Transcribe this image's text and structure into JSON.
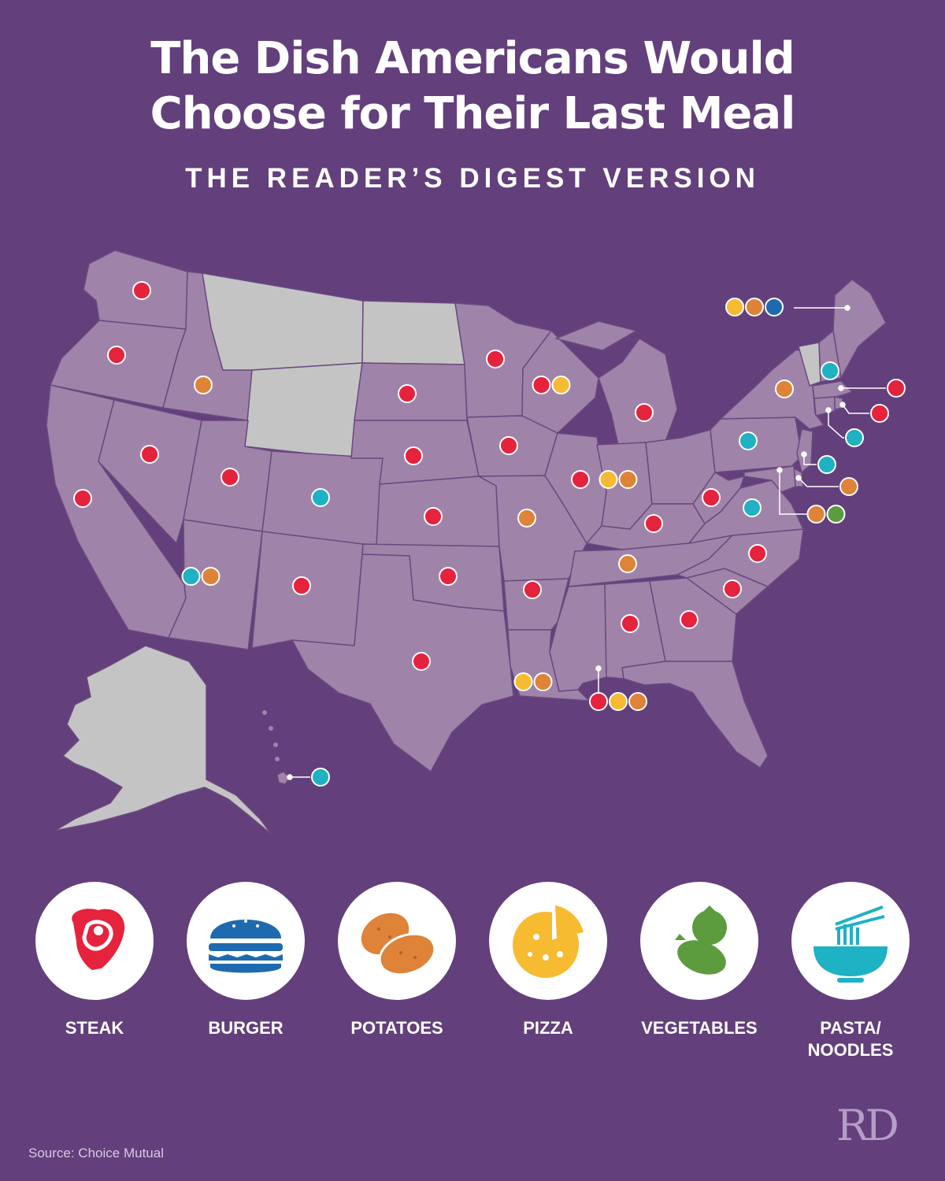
{
  "title_line1": "The Dish Americans Would",
  "title_line2": "Choose for Their Last Meal",
  "subtitle": "THE READER’S DIGEST VERSION",
  "source": "Source: Choice Mutual",
  "logo_text": "RD",
  "colors": {
    "background": "#633f7c",
    "state_fill": "#a083a8",
    "no_data_fill": "#c4c4c4",
    "steak": "#e5233c",
    "burger": "#1f6aaf",
    "potatoes": "#de8337",
    "pizza": "#f6bb31",
    "vegetables": "#5c9c3f",
    "pasta": "#1fb1c4"
  },
  "legend": [
    {
      "key": "steak",
      "label": "STEAK",
      "icon": "steak-icon"
    },
    {
      "key": "burger",
      "label": "BURGER",
      "icon": "burger-icon"
    },
    {
      "key": "potatoes",
      "label": "POTATOES",
      "icon": "potatoes-icon"
    },
    {
      "key": "pizza",
      "label": "PIZZA",
      "icon": "pizza-icon"
    },
    {
      "key": "vegetables",
      "label": "VEGETABLES",
      "icon": "vegetables-icon"
    },
    {
      "key": "pasta",
      "label": "PASTA/\nNOODLES",
      "icon": "noodles-icon"
    }
  ],
  "no_data_states": [
    "MT",
    "ND",
    "WY",
    "VT",
    "AK"
  ],
  "states": [
    {
      "state": "WA",
      "dishes": [
        "steak"
      ]
    },
    {
      "state": "OR",
      "dishes": [
        "steak"
      ]
    },
    {
      "state": "CA",
      "dishes": [
        "steak"
      ]
    },
    {
      "state": "ID",
      "dishes": [
        "potatoes"
      ]
    },
    {
      "state": "NV",
      "dishes": [
        "steak"
      ]
    },
    {
      "state": "UT",
      "dishes": [
        "steak"
      ]
    },
    {
      "state": "AZ",
      "dishes": [
        "pasta",
        "potatoes"
      ]
    },
    {
      "state": "CO",
      "dishes": [
        "pasta"
      ]
    },
    {
      "state": "NM",
      "dishes": [
        "steak"
      ]
    },
    {
      "state": "SD",
      "dishes": [
        "steak"
      ]
    },
    {
      "state": "NE",
      "dishes": [
        "steak"
      ]
    },
    {
      "state": "KS",
      "dishes": [
        "steak"
      ]
    },
    {
      "state": "OK",
      "dishes": [
        "steak"
      ]
    },
    {
      "state": "TX",
      "dishes": [
        "steak"
      ]
    },
    {
      "state": "MN",
      "dishes": [
        "steak"
      ]
    },
    {
      "state": "IA",
      "dishes": [
        "steak"
      ]
    },
    {
      "state": "MO",
      "dishes": [
        "potatoes"
      ]
    },
    {
      "state": "AR",
      "dishes": [
        "steak"
      ]
    },
    {
      "state": "LA",
      "dishes": [
        "pizza",
        "potatoes"
      ]
    },
    {
      "state": "WI",
      "dishes": [
        "steak",
        "pizza"
      ]
    },
    {
      "state": "IL",
      "dishes": [
        "steak"
      ]
    },
    {
      "state": "MI",
      "dishes": [
        "steak"
      ]
    },
    {
      "state": "IN",
      "dishes": [
        "pizza",
        "potatoes"
      ]
    },
    {
      "state": "KY",
      "dishes": [
        "steak"
      ]
    },
    {
      "state": "TN",
      "dishes": [
        "potatoes"
      ]
    },
    {
      "state": "MS",
      "dishes": [
        "steak",
        "pizza",
        "potatoes"
      ]
    },
    {
      "state": "AL",
      "dishes": [
        "steak"
      ]
    },
    {
      "state": "GA",
      "dishes": [
        "steak"
      ]
    },
    {
      "state": "SC",
      "dishes": [
        "steak"
      ]
    },
    {
      "state": "NC",
      "dishes": [
        "steak"
      ]
    },
    {
      "state": "VA",
      "dishes": [
        "pasta"
      ]
    },
    {
      "state": "WV",
      "dishes": [
        "steak"
      ]
    },
    {
      "state": "PA",
      "dishes": [
        "pasta"
      ]
    },
    {
      "state": "NY",
      "dishes": [
        "potatoes"
      ]
    },
    {
      "state": "ME",
      "dishes": [
        "pizza",
        "potatoes",
        "burger"
      ]
    },
    {
      "state": "NH",
      "dishes": [
        "pasta"
      ]
    },
    {
      "state": "MA",
      "dishes": [
        "steak"
      ]
    },
    {
      "state": "RI",
      "dishes": [
        "steak"
      ]
    },
    {
      "state": "CT",
      "dishes": [
        "pasta"
      ]
    },
    {
      "state": "NJ",
      "dishes": [
        "pasta"
      ]
    },
    {
      "state": "DE",
      "dishes": [
        "potatoes"
      ]
    },
    {
      "state": "MD",
      "dishes": [
        "potatoes",
        "vegetables"
      ]
    },
    {
      "state": "HI",
      "dishes": [
        "pasta"
      ]
    }
  ]
}
